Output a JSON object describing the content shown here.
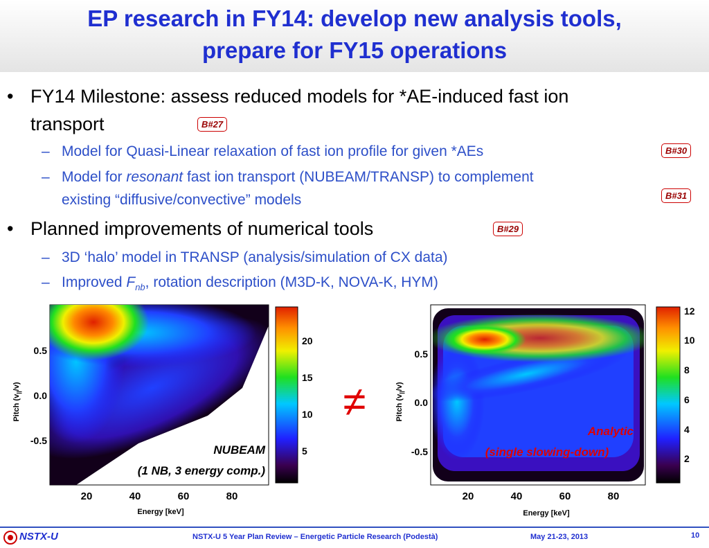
{
  "header": {
    "title_lines": [
      "EP research in FY14: develop new analysis tools,",
      "prepare for FY15 operations"
    ]
  },
  "bullets": [
    {
      "lines": [
        "FY14 Milestone: assess reduced models for *AE-induced fast ion",
        "transport"
      ],
      "badge": "B#27",
      "subs": [
        {
          "parts": [
            "Model for Quasi-Linear relaxation of fast ion profile for given *AEs"
          ],
          "badge": "B#30"
        },
        {
          "parts": [
            "Model for ",
            "resonant",
            " fast ion transport (NUBEAM/TRANSP) to complement"
          ],
          "line2": "existing “diffusive/convective” models",
          "badge": "B#31"
        }
      ]
    },
    {
      "lines": [
        "Planned improvements of numerical tools"
      ],
      "badge": "B#29",
      "subs": [
        {
          "parts": [
            "3D ‘halo’ model in TRANSP (analysis/simulation of CX data)"
          ]
        },
        {
          "parts": [
            "Improved ",
            "F",
            "nb",
            ", rotation description (M3D-K, NOVA-K, HYM)"
          ]
        }
      ]
    }
  ],
  "plots": [
    {
      "ylabel": [
        "Pitch (v",
        "||",
        "/v)"
      ],
      "xlabel": "Energy [keV]",
      "yticks": [
        "0.5",
        "0.0",
        "-0.5"
      ],
      "xticks": [
        "20",
        "40",
        "60",
        "80"
      ],
      "colorbar": [
        "20",
        "15",
        "10",
        "5"
      ],
      "caption": [
        "NUBEAM",
        "(1 NB, 3 energy comp.)"
      ]
    },
    {
      "ylabel": [
        "Pitch (v",
        "||",
        "/v)"
      ],
      "xlabel": "Energy [keV]",
      "yticks": [
        "0.5",
        "0.0",
        "-0.5"
      ],
      "xticks": [
        "20",
        "40",
        "60",
        "80"
      ],
      "colorbar": [
        "12",
        "10",
        "8",
        "6",
        "4",
        "2"
      ],
      "caption": [
        "Analytic",
        "(single slowing-down)"
      ]
    }
  ],
  "relation": "≠",
  "footer": {
    "logo": "NSTX-U",
    "center": "NSTX-U 5 Year Plan Review – Energetic Particle Research (Podestà)",
    "date": "May 21-23, 2013",
    "page": "10"
  }
}
